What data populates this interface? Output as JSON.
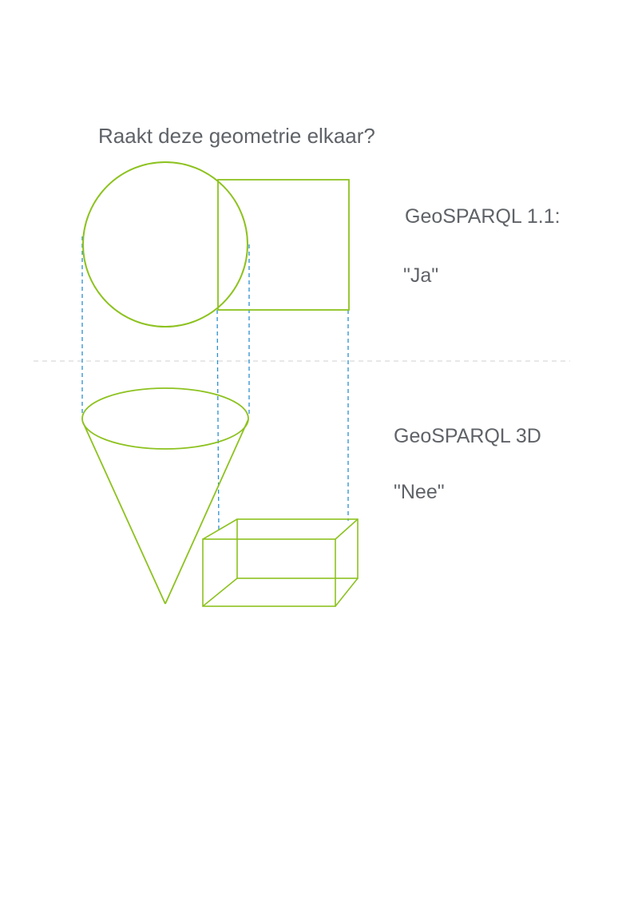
{
  "title": "Raakt deze geometrie elkaar?",
  "sections": {
    "flat": {
      "heading": "GeoSPARQL 1.1:",
      "answer": "\"Ja\""
    },
    "solid": {
      "heading": "GeoSPARQL 3D",
      "answer": "\"Nee\""
    }
  },
  "colors": {
    "text": "#5f6368",
    "shape": "#8dc21f",
    "projection": "#2b8fd1",
    "divider": "#e8e8e8",
    "background": "#ffffff"
  }
}
